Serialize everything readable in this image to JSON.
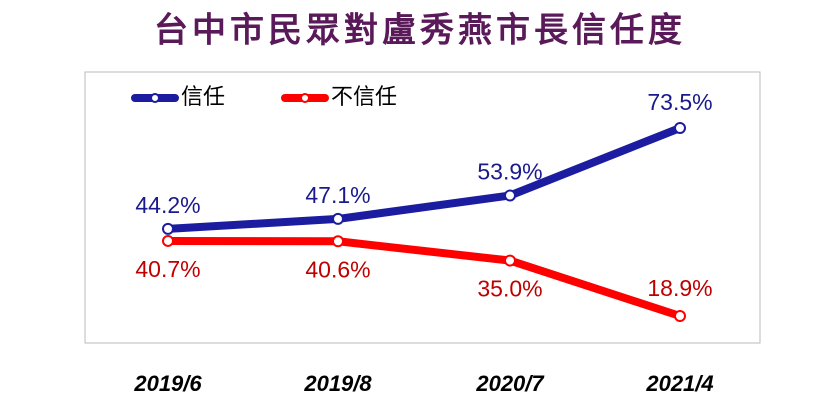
{
  "chart_data": {
    "type": "line",
    "title": "台中市民眾對盧秀燕市長信任度",
    "categories": [
      "2019/6",
      "2019/8",
      "2020/7",
      "2021/4"
    ],
    "series": [
      {
        "name": "信任",
        "color": "#1c1ca0",
        "label_color": "#1a1a8c",
        "values": [
          44.2,
          47.1,
          53.9,
          73.5
        ],
        "value_labels": [
          "44.2%",
          "47.1%",
          "53.9%",
          "73.5%"
        ]
      },
      {
        "name": "不信任",
        "color": "#ff0000",
        "label_color": "#c00000",
        "values": [
          40.7,
          40.6,
          35.0,
          18.9
        ],
        "value_labels": [
          "40.7%",
          "40.6%",
          "35.0%",
          "18.9%"
        ]
      }
    ]
  }
}
